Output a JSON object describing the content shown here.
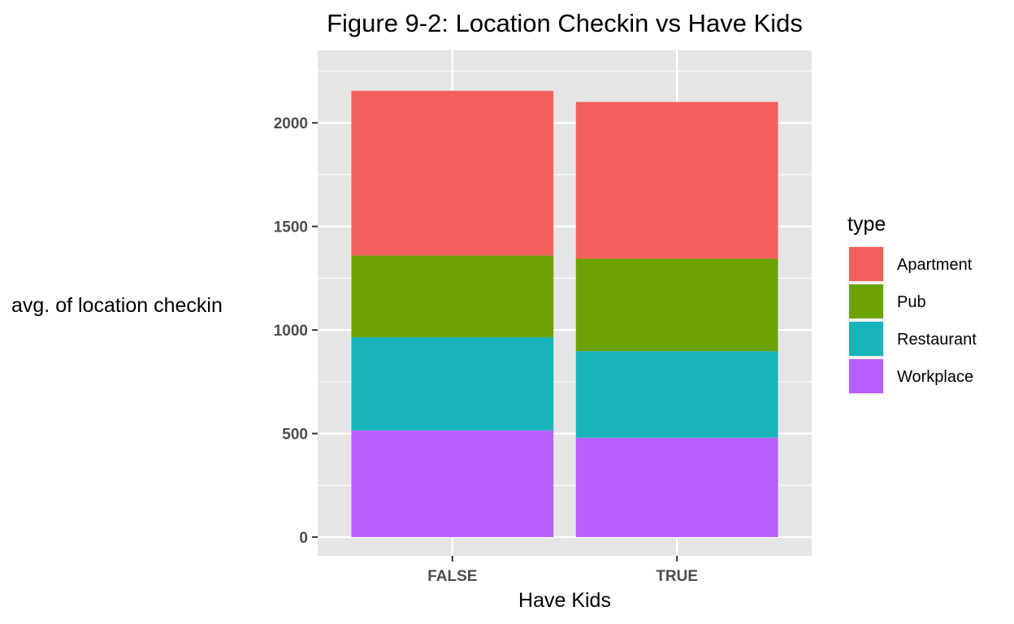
{
  "chart_data": {
    "type": "bar",
    "stacked": true,
    "title": "Figure 9-2: Location Checkin vs Have Kids",
    "xlabel": "Have Kids",
    "ylabel": "avg. of location checkin",
    "categories": [
      "FALSE",
      "TRUE"
    ],
    "ylim": [
      -90,
      2350
    ],
    "yticks": [
      0,
      500,
      1000,
      1500,
      2000
    ],
    "grid": true,
    "legend": {
      "title": "type",
      "position": "right"
    },
    "series": [
      {
        "name": "Workplace",
        "color": "#B75FFF",
        "values": [
          515,
          480
        ]
      },
      {
        "name": "Restaurant",
        "color": "#19B4B9",
        "values": [
          450,
          418
        ]
      },
      {
        "name": "Pub",
        "color": "#6BA304",
        "values": [
          395,
          446
        ]
      },
      {
        "name": "Apartment",
        "color": "#F3605C",
        "values": [
          795,
          757
        ]
      }
    ],
    "legend_order": [
      "Apartment",
      "Pub",
      "Restaurant",
      "Workplace"
    ],
    "panel_background": "#E5E5E5",
    "grid_color": "#FFFFFF"
  }
}
